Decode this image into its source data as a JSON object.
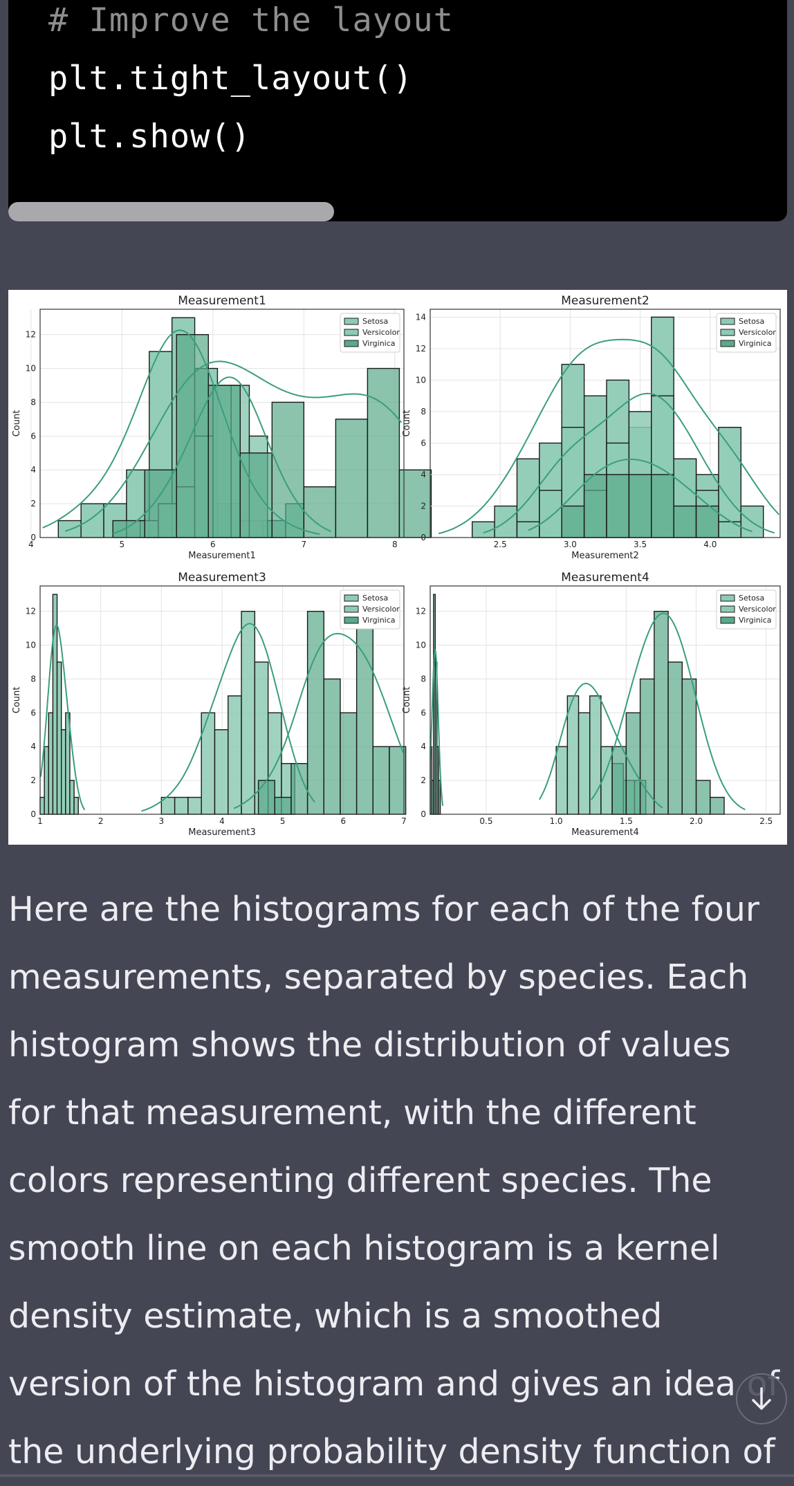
{
  "code": {
    "lines": [
      {
        "text": "# Improve the layout",
        "kind": "comment"
      },
      {
        "text": "plt.tight_layout()",
        "kind": "code"
      },
      {
        "text": "plt.show()",
        "kind": "code"
      }
    ]
  },
  "legend": [
    "Setosa",
    "Versicolor",
    "Virginica"
  ],
  "colors": {
    "bar_fill": "#8ecbb4",
    "bar_fill_dark": "#5aa98a",
    "kde_line": "#3a9e7a",
    "page_bg": "#444654",
    "text": "#ececf1"
  },
  "chart_data": [
    {
      "type": "histogram",
      "title": "Measurement1",
      "xlabel": "Measurement1",
      "ylabel": "Count",
      "xlim": [
        4.1,
        8.1
      ],
      "ylim": [
        0,
        13.5
      ],
      "xticks": [
        4,
        5,
        6,
        7,
        8
      ],
      "yticks": [
        0,
        2,
        4,
        6,
        8,
        10,
        12
      ],
      "grid": true,
      "legend_position": "upper-right",
      "series": [
        {
          "name": "Setosa",
          "bin_width": 0.25,
          "bins": [
            [
              4.3,
              1
            ],
            [
              4.55,
              2
            ],
            [
              4.8,
              2
            ],
            [
              5.05,
              4
            ],
            [
              5.3,
              11
            ],
            [
              5.55,
              13
            ],
            [
              5.8,
              10
            ],
            [
              6.05,
              2
            ],
            [
              6.3,
              1
            ],
            [
              6.55,
              1
            ]
          ]
        },
        {
          "name": "Versicolor",
          "bin_width": 0.2,
          "bins": [
            [
              5.2,
              1
            ],
            [
              5.4,
              2
            ],
            [
              5.6,
              3
            ],
            [
              5.8,
              6
            ],
            [
              6.0,
              9
            ],
            [
              6.2,
              9
            ],
            [
              6.4,
              6
            ],
            [
              6.6,
              1
            ],
            [
              6.8,
              2
            ]
          ]
        },
        {
          "name": "Virginica",
          "bin_width": 0.35,
          "bins": [
            [
              4.9,
              1
            ],
            [
              5.25,
              4
            ],
            [
              5.6,
              12
            ],
            [
              5.95,
              9
            ],
            [
              6.3,
              5
            ],
            [
              6.65,
              8
            ],
            [
              7.0,
              3
            ],
            [
              7.35,
              7
            ],
            [
              7.7,
              10
            ],
            [
              8.05,
              4
            ]
          ]
        }
      ]
    },
    {
      "type": "histogram",
      "title": "Measurement2",
      "xlabel": "Measurement2",
      "ylabel": "Count",
      "xlim": [
        2.0,
        4.5
      ],
      "ylim": [
        0,
        14.5
      ],
      "xticks": [
        2.5,
        3.0,
        3.5,
        4.0
      ],
      "yticks": [
        0,
        2,
        4,
        6,
        8,
        10,
        12,
        14
      ],
      "grid": true,
      "legend_position": "upper-right",
      "series": [
        {
          "name": "Setosa",
          "bin_width": 0.16,
          "bins": [
            [
              2.3,
              1
            ],
            [
              2.46,
              2
            ],
            [
              2.62,
              5
            ],
            [
              2.78,
              6
            ],
            [
              2.94,
              11
            ],
            [
              3.1,
              9
            ],
            [
              3.26,
              10
            ],
            [
              3.42,
              7
            ],
            [
              3.58,
              14
            ],
            [
              3.74,
              5
            ],
            [
              3.9,
              4
            ],
            [
              4.06,
              7
            ],
            [
              4.22,
              2
            ]
          ]
        },
        {
          "name": "Versicolor",
          "bin_width": 0.16,
          "bins": [
            [
              2.62,
              1
            ],
            [
              2.78,
              3
            ],
            [
              2.94,
              7
            ],
            [
              3.1,
              3
            ],
            [
              3.26,
              6
            ],
            [
              3.42,
              8
            ],
            [
              3.58,
              9
            ],
            [
              3.74,
              5
            ],
            [
              3.9,
              3
            ],
            [
              4.06,
              1
            ]
          ]
        },
        {
          "name": "Virginica",
          "bin_width": 0.16,
          "bins": [
            [
              2.94,
              2
            ],
            [
              3.1,
              4
            ],
            [
              3.26,
              4
            ],
            [
              3.42,
              4
            ],
            [
              3.58,
              4
            ],
            [
              3.74,
              2
            ],
            [
              3.9,
              2
            ]
          ]
        }
      ]
    },
    {
      "type": "histogram",
      "title": "Measurement3",
      "xlabel": "Measurement3",
      "ylabel": "Count",
      "xlim": [
        1.0,
        7.0
      ],
      "ylim": [
        0,
        13.5
      ],
      "xticks": [
        1,
        2,
        3,
        4,
        5,
        6,
        7
      ],
      "yticks": [
        0,
        2,
        4,
        6,
        8,
        10,
        12
      ],
      "grid": true,
      "legend_position": "upper-right",
      "series": [
        {
          "name": "Setosa",
          "bin_width": 0.07,
          "bins": [
            [
              1.0,
              1
            ],
            [
              1.07,
              4
            ],
            [
              1.14,
              6
            ],
            [
              1.21,
              13
            ],
            [
              1.28,
              9
            ],
            [
              1.35,
              5
            ],
            [
              1.42,
              6
            ],
            [
              1.49,
              2
            ],
            [
              1.56,
              1
            ]
          ]
        },
        {
          "name": "Versicolor",
          "bin_width": 0.22,
          "bins": [
            [
              3.0,
              1
            ],
            [
              3.22,
              1
            ],
            [
              3.44,
              1
            ],
            [
              3.66,
              6
            ],
            [
              3.88,
              5
            ],
            [
              4.1,
              7
            ],
            [
              4.32,
              12
            ],
            [
              4.54,
              9
            ],
            [
              4.76,
              6
            ],
            [
              4.98,
              3
            ]
          ]
        },
        {
          "name": "Virginica",
          "bin_width": 0.27,
          "bins": [
            [
              4.6,
              2
            ],
            [
              4.87,
              1
            ],
            [
              5.14,
              3
            ],
            [
              5.41,
              12
            ],
            [
              5.68,
              8
            ],
            [
              5.95,
              6
            ],
            [
              6.22,
              11
            ],
            [
              6.49,
              4
            ],
            [
              6.76,
              4
            ]
          ]
        }
      ]
    },
    {
      "type": "histogram",
      "title": "Measurement4",
      "xlabel": "Measurement4",
      "ylabel": "Count",
      "xlim": [
        0.1,
        2.6
      ],
      "ylim": [
        0,
        13.5
      ],
      "xticks": [
        0.5,
        1.0,
        1.5,
        2.0,
        2.5
      ],
      "yticks": [
        0,
        2,
        4,
        6,
        8,
        10,
        12
      ],
      "grid": true,
      "legend_position": "upper-right",
      "series": [
        {
          "name": "Setosa",
          "bin_width": 0.012,
          "bins": [
            [
              0.1,
              4
            ],
            [
              0.112,
              2
            ],
            [
              0.124,
              13
            ],
            [
              0.136,
              9
            ],
            [
              0.148,
              4
            ],
            [
              0.16,
              2
            ]
          ]
        },
        {
          "name": "Versicolor",
          "bin_width": 0.08,
          "bins": [
            [
              1.0,
              4
            ],
            [
              1.08,
              7
            ],
            [
              1.16,
              6
            ],
            [
              1.24,
              7
            ],
            [
              1.32,
              4
            ],
            [
              1.4,
              3
            ],
            [
              1.48,
              2
            ],
            [
              1.56,
              2
            ]
          ]
        },
        {
          "name": "Virginica",
          "bin_width": 0.1,
          "bins": [
            [
              1.4,
              4
            ],
            [
              1.5,
              6
            ],
            [
              1.6,
              8
            ],
            [
              1.7,
              12
            ],
            [
              1.8,
              9
            ],
            [
              1.9,
              8
            ],
            [
              2.0,
              2
            ],
            [
              2.1,
              1
            ]
          ]
        }
      ]
    }
  ],
  "answer": {
    "text": "Here are the histograms for each of the four measurements, separated by species. Each histogram shows the distribution of values for that measurement, with the different colors representing different species. The smooth line on each histogram is a kernel density estimate, which is a smoothed version of the histogram and gives an idea of the underlying probability density function of"
  }
}
